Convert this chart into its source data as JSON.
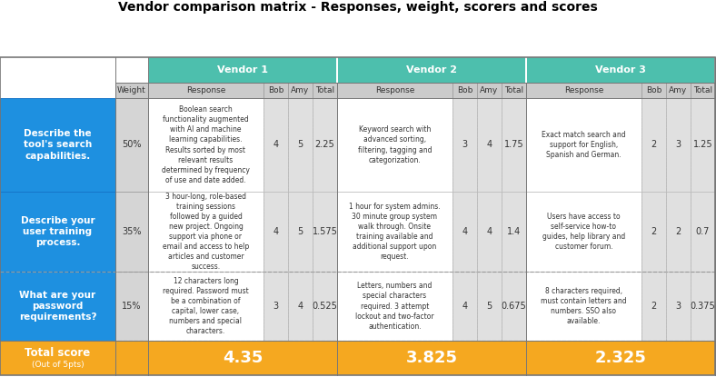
{
  "title": "Vendor comparison matrix - Responses, weight, scorers and scores",
  "vendors": [
    "Vendor 1",
    "Vendor 2",
    "Vendor 3"
  ],
  "sub_headers": [
    "Response",
    "Bob",
    "Amy",
    "Total"
  ],
  "row_labels": [
    "Describe the\ntool's search\ncapabilities.",
    "Describe your\nuser training\nprocess.",
    "What are your\npassword\nrequirements?"
  ],
  "weights": [
    "50%",
    "35%",
    "15%"
  ],
  "responses_v1": [
    "Boolean search\nfunctionality augmented\nwith AI and machine\nlearning capabilities.\nResults sorted by most\nrelevant results\ndetermined by frequency\nof use and date added.",
    "3 hour-long, role-based\ntraining sessions\nfollowed by a guided\nnew project. Ongoing\nsupport via phone or\nemail and access to help\narticles and customer\nsuccess.",
    "12 characters long\nrequired. Password must\nbe a combination of\ncapital, lower case,\nnumbers and special\ncharacters."
  ],
  "scores_v1": [
    [
      4,
      5,
      "2.25"
    ],
    [
      4,
      5,
      "1.575"
    ],
    [
      3,
      4,
      "0.525"
    ]
  ],
  "responses_v2": [
    "Keyword search with\nadvanced sorting,\nfiltering, tagging and\ncategorization.",
    "1 hour for system admins.\n30 minute group system\nwalk through. Onsite\ntraining available and\nadditional support upon\nrequest.",
    "Letters, numbers and\nspecial characters\nrequired. 3 attempt\nlockout and two-factor\nauthentication."
  ],
  "scores_v2": [
    [
      3,
      4,
      "1.75"
    ],
    [
      4,
      4,
      "1.4"
    ],
    [
      4,
      5,
      "0.675"
    ]
  ],
  "responses_v3": [
    "Exact match search and\nsupport for English,\nSpanish and German.",
    "Users have access to\nself-service how-to\nguides, help library and\ncustomer forum.",
    "8 characters required,\nmust contain letters and\nnumbers. SSO also\navailable."
  ],
  "scores_v3": [
    [
      2,
      3,
      "1.25"
    ],
    [
      2,
      2,
      "0.7"
    ],
    [
      2,
      3,
      "0.375"
    ]
  ],
  "totals": [
    "4.35",
    "3.825",
    "2.325"
  ],
  "color_teal": "#4DBFAD",
  "color_blue": "#1E90E0",
  "color_orange": "#F5A820",
  "color_white": "#FFFFFF",
  "color_label_gray": "#CCCCCC",
  "color_cell_bg": "#F0F0F0",
  "color_score_bg": "#E0E0E0",
  "title_fontsize": 10,
  "vendor_header_fontsize": 8,
  "subheader_fontsize": 6.5,
  "row_label_fontsize": 7.5,
  "weight_fontsize": 7,
  "response_fontsize": 5.5,
  "score_fontsize": 7,
  "total_fontsize": 13,
  "total_label_fontsize": 8.5,
  "total_sublabel_fontsize": 6.5
}
